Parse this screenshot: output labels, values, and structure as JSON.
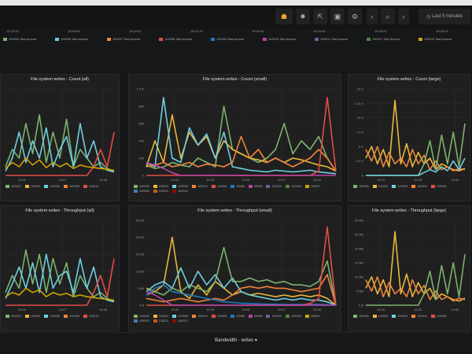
{
  "toolbar": {
    "buttons": [
      {
        "name": "add-panel",
        "icon": "☗"
      },
      {
        "name": "star",
        "icon": "✸"
      },
      {
        "name": "share",
        "icon": "⇱"
      },
      {
        "name": "save",
        "icon": "▣"
      },
      {
        "name": "settings",
        "icon": "⚙"
      },
      {
        "name": "back",
        "icon": "‹"
      },
      {
        "name": "zoom-out",
        "icon": "⌕"
      },
      {
        "name": "forward",
        "icon": "›"
      }
    ],
    "time_picker": "Last 5 minutes"
  },
  "top_ticks": [
    "15:03:30",
    "15:03:45",
    "15:04:00",
    "15:04:15",
    "15:04:30",
    "15:04:45",
    "15:05:00",
    "15:05:15"
  ],
  "top_legend": [
    {
      "label": "100005 Stat Access",
      "color": "#7eb26d"
    },
    {
      "label": "100006 Stat Access",
      "color": "#6ed0e0"
    },
    {
      "label": "100007 Stat Access",
      "color": "#ef843c"
    },
    {
      "label": "100008 Stat Access",
      "color": "#e24d42"
    },
    {
      "label": "100009 Stat Access",
      "color": "#1f78c1"
    },
    {
      "label": "100010 Stat Access",
      "color": "#ba43a9"
    },
    {
      "label": "100011 Stat Access",
      "color": "#705da0"
    },
    {
      "label": "100012 Stat Access",
      "color": "#508642"
    },
    {
      "label": "100013 Stat Access",
      "color": "#cca300"
    }
  ],
  "row_title": "Bandwidth - writes",
  "chart_data": [
    {
      "type": "line",
      "title": "File system writes - Count (all)",
      "xticks": [
        "15:06",
        "15:07",
        "15:08"
      ],
      "yticks": [],
      "ymax": 1000,
      "legend": [
        "100002",
        "100004",
        "100006",
        "100008",
        "100010"
      ],
      "series": [
        {
          "color": "#7eb26d",
          "values": [
            100,
            300,
            200,
            600,
            250,
            700,
            150,
            500,
            200,
            650,
            100,
            300,
            200,
            100,
            150,
            80,
            50
          ]
        },
        {
          "color": "#6ed0e0",
          "values": [
            50,
            200,
            500,
            150,
            400,
            200,
            550,
            100,
            300,
            450,
            100,
            600,
            200,
            400,
            100,
            60,
            40
          ]
        },
        {
          "color": "#e24d42",
          "values": [
            0,
            0,
            0,
            0,
            0,
            0,
            0,
            0,
            0,
            0,
            0,
            0,
            0,
            100,
            300,
            100,
            500
          ]
        },
        {
          "color": "#cca300",
          "values": [
            80,
            150,
            100,
            200,
            120,
            180,
            90,
            150,
            100,
            140,
            80,
            120,
            100,
            90,
            80,
            70,
            60
          ]
        }
      ]
    },
    {
      "type": "line",
      "title": "File system writes - Count (small)",
      "xticks": [
        "15:04",
        "15:05",
        "15:06",
        "15:07",
        "15:08"
      ],
      "yticks": [
        "1.0 K",
        "800",
        "600",
        "400",
        "200",
        "0"
      ],
      "ymax": 1000,
      "legend": [
        "100006",
        "100002",
        "100003",
        "100004",
        "100008",
        "99996",
        "99998",
        "100010",
        "100005",
        "100007",
        "100009",
        "100011",
        "100012"
      ],
      "series": [
        {
          "color": "#7eb26d",
          "values": [
            120,
            80,
            100,
            150,
            120,
            100,
            200,
            150,
            100,
            800,
            300,
            250,
            200,
            150,
            200,
            300,
            600,
            250,
            400,
            300,
            450,
            200,
            50
          ]
        },
        {
          "color": "#eab839",
          "values": [
            100,
            400,
            150,
            700,
            200,
            500,
            350,
            450,
            200,
            400,
            300,
            250,
            200,
            180,
            150,
            200,
            150,
            200,
            180,
            150,
            120,
            100,
            50
          ]
        },
        {
          "color": "#6ed0e0",
          "values": [
            150,
            100,
            900,
            200,
            150,
            550,
            350,
            480,
            200,
            500,
            100,
            80,
            60,
            50,
            40,
            60,
            50,
            40,
            50,
            60,
            40,
            30,
            20
          ]
        },
        {
          "color": "#ef843c",
          "values": [
            100,
            120,
            150,
            100,
            120,
            150,
            100,
            130,
            120,
            100,
            150,
            450,
            200,
            300,
            150,
            200,
            150,
            100,
            150,
            200,
            300,
            200,
            50
          ]
        },
        {
          "color": "#e24d42",
          "values": [
            0,
            0,
            0,
            0,
            0,
            0,
            0,
            0,
            0,
            0,
            0,
            0,
            0,
            0,
            0,
            0,
            0,
            0,
            0,
            0,
            50,
            900,
            50
          ]
        },
        {
          "color": "#ba43a9",
          "values": [
            150,
            120,
            80,
            30,
            0,
            0,
            0,
            0,
            0,
            0,
            0,
            0,
            0,
            0,
            0,
            0,
            0,
            0,
            0,
            0,
            0,
            0,
            0
          ]
        }
      ]
    },
    {
      "type": "line",
      "title": "File system writes - Count (large)",
      "xticks": [
        "15:04",
        "15:05",
        "15:06"
      ],
      "yticks": [
        "15 K",
        "12.5 K",
        "10 K",
        "7.5 K",
        "5 K",
        "2.5 K",
        "0"
      ],
      "ymax": 15000,
      "legend": [
        "100006",
        "100002",
        "100003",
        "100004",
        "100008"
      ],
      "series": [
        {
          "color": "#eab839",
          "values": [
            3000,
            5000,
            2000,
            4500,
            1500,
            13000,
            2000,
            5500,
            1500,
            4000,
            2000,
            3000,
            1000,
            2000,
            1500,
            1000,
            800,
            1200
          ]
        },
        {
          "color": "#ef843c",
          "values": [
            4500,
            2500,
            5000,
            1500,
            4000,
            2000,
            3000,
            1500,
            4500,
            2000,
            3500,
            1000,
            2500,
            1000,
            1500,
            800,
            1200,
            1000
          ]
        },
        {
          "color": "#7eb26d",
          "values": [
            0,
            0,
            0,
            0,
            0,
            0,
            0,
            0,
            0,
            0,
            2000,
            6000,
            1000,
            7000,
            2000,
            7500,
            1500,
            9000
          ]
        },
        {
          "color": "#6ed0e0",
          "values": [
            0,
            0,
            0,
            0,
            0,
            0,
            0,
            0,
            0,
            0,
            500,
            1000,
            600,
            1500,
            800,
            2500,
            1000,
            3000
          ]
        }
      ]
    },
    {
      "type": "line",
      "title": "File system writes - Throughput (all)",
      "xticks": [
        "15:06",
        "15:07",
        "15:08"
      ],
      "yticks": [],
      "ymax": 1000,
      "legend": [
        "100002",
        "100004",
        "100006",
        "100008",
        "100010"
      ],
      "series": [
        {
          "color": "#7eb26d",
          "values": [
            150,
            350,
            200,
            650,
            250,
            600,
            150,
            550,
            250,
            500,
            100,
            350,
            200,
            100,
            150,
            80,
            50
          ]
        },
        {
          "color": "#6ed0e0",
          "values": [
            80,
            250,
            450,
            200,
            500,
            150,
            600,
            200,
            350,
            400,
            150,
            550,
            200,
            450,
            100,
            60,
            40
          ]
        },
        {
          "color": "#e24d42",
          "values": [
            0,
            0,
            0,
            0,
            0,
            0,
            0,
            0,
            0,
            0,
            0,
            0,
            0,
            150,
            350,
            100,
            550
          ]
        },
        {
          "color": "#cca300",
          "values": [
            100,
            150,
            120,
            200,
            150,
            180,
            100,
            150,
            120,
            140,
            100,
            120,
            100,
            90,
            80,
            70,
            60
          ]
        }
      ]
    },
    {
      "type": "line",
      "title": "File system writes - Throughput (small)",
      "xticks": [
        "15:04",
        "15:05",
        "15:06",
        "15:07",
        "15:08"
      ],
      "yticks": [
        "25 kB",
        "20 kB",
        "15 kB",
        "10 kB",
        "5 kB",
        "0 B"
      ],
      "ymax": 25000,
      "legend": [
        "100006",
        "100002",
        "100003",
        "100004",
        "100008",
        "99996",
        "99998",
        "100010",
        "100005",
        "100007",
        "100009",
        "100011",
        "100012"
      ],
      "series": [
        {
          "color": "#eab839",
          "values": [
            5000,
            4000,
            6000,
            20000,
            4000,
            2000,
            6000,
            3000,
            7000,
            5000,
            3000,
            4000,
            3000,
            3500,
            3000,
            2500,
            3000,
            2500,
            3000,
            2500,
            3000,
            2000,
            0
          ]
        },
        {
          "color": "#6ed0e0",
          "values": [
            4000,
            6000,
            7000,
            5000,
            11000,
            5000,
            10000,
            6000,
            9000,
            5000,
            8000,
            4000,
            3000,
            2500,
            2000,
            1500,
            2000,
            1500,
            2000,
            1500,
            1500,
            1000,
            0
          ]
        },
        {
          "color": "#7eb26d",
          "values": [
            3000,
            4000,
            3000,
            5000,
            4000,
            6000,
            5000,
            4000,
            7000,
            17000,
            7000,
            7000,
            8000,
            7000,
            7500,
            6500,
            7000,
            6000,
            6000,
            5500,
            7000,
            13000,
            0
          ]
        },
        {
          "color": "#ef843c",
          "values": [
            2000,
            1500,
            1000,
            1500,
            2000,
            1500,
            1000,
            1500,
            2000,
            1500,
            3000,
            5000,
            5500,
            5000,
            5500,
            5000,
            5000,
            4500,
            4000,
            4500,
            5000,
            9000,
            0
          ]
        },
        {
          "color": "#1f78c1",
          "values": [
            3000,
            5000,
            6000,
            4000,
            3500,
            3000,
            2500,
            2000,
            1500,
            1000,
            800,
            600,
            500,
            400,
            300,
            300,
            200,
            200,
            200,
            200,
            200,
            100,
            0
          ]
        },
        {
          "color": "#e24d42",
          "values": [
            0,
            0,
            0,
            0,
            0,
            0,
            0,
            0,
            0,
            0,
            0,
            0,
            0,
            0,
            0,
            0,
            0,
            0,
            0,
            500,
            2000,
            23000,
            0
          ]
        },
        {
          "color": "#ba43a9",
          "values": [
            4000,
            3000,
            1500,
            0,
            0,
            0,
            0,
            0,
            0,
            0,
            0,
            0,
            0,
            0,
            0,
            0,
            0,
            0,
            0,
            0,
            0,
            0,
            0
          ]
        }
      ]
    },
    {
      "type": "line",
      "title": "File system writes - Throughput (large)",
      "xticks": [
        "15:04",
        "15:05",
        "15:06"
      ],
      "yticks": [
        "30 MB",
        "25 MB",
        "20 MB",
        "15 MB",
        "10 MB",
        "5 MB",
        "0 B"
      ],
      "ymax": 30000000,
      "legend": [
        "100006",
        "100002",
        "100003",
        "100004",
        "100008"
      ],
      "series": [
        {
          "color": "#eab839",
          "values": [
            6000000,
            10000000,
            4000000,
            9000000,
            3000000,
            26000000,
            4000000,
            11000000,
            3000000,
            8000000,
            4000000,
            6000000,
            2000000,
            4000000,
            3000000,
            2000000,
            1500000,
            2500000
          ]
        },
        {
          "color": "#ef843c",
          "values": [
            9000000,
            5000000,
            10000000,
            3000000,
            8000000,
            4000000,
            6000000,
            3000000,
            9000000,
            4000000,
            7000000,
            2000000,
            5000000,
            2000000,
            3000000,
            1500000,
            2500000,
            2000000
          ]
        },
        {
          "color": "#7eb26d",
          "values": [
            0,
            0,
            0,
            0,
            0,
            0,
            0,
            0,
            0,
            0,
            4000000,
            12000000,
            2000000,
            14000000,
            4000000,
            15000000,
            3000000,
            18000000
          ]
        }
      ]
    }
  ]
}
